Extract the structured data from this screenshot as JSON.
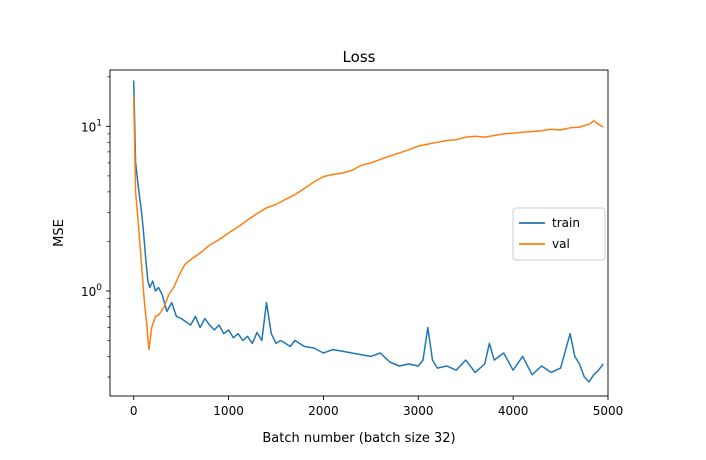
{
  "chart_data": {
    "type": "line",
    "title": "Loss",
    "xlabel": "Batch number (batch size 32)",
    "ylabel": "MSE",
    "xlim": [
      -250,
      5000
    ],
    "ylim": [
      0.23,
      22
    ],
    "yscale": "log",
    "x_ticks": [
      0,
      1000,
      2000,
      3000,
      4000,
      5000
    ],
    "y_ticks": [
      {
        "value": 1,
        "base": "10",
        "exp": "0"
      },
      {
        "value": 10,
        "base": "10",
        "exp": "1"
      }
    ],
    "grid": false,
    "legend": "center-right",
    "series": [
      {
        "name": "train",
        "color": "#1f77b4",
        "x": [
          0,
          20,
          50,
          80,
          100,
          130,
          150,
          170,
          200,
          230,
          260,
          300,
          350,
          400,
          450,
          500,
          550,
          600,
          650,
          700,
          750,
          800,
          850,
          900,
          950,
          1000,
          1050,
          1100,
          1150,
          1200,
          1250,
          1300,
          1350,
          1400,
          1450,
          1500,
          1550,
          1600,
          1650,
          1700,
          1800,
          1900,
          2000,
          2100,
          2200,
          2300,
          2400,
          2500,
          2600,
          2700,
          2800,
          2900,
          3000,
          3050,
          3100,
          3150,
          3200,
          3300,
          3400,
          3500,
          3600,
          3700,
          3750,
          3800,
          3900,
          4000,
          4100,
          4200,
          4300,
          4400,
          4500,
          4600,
          4650,
          4700,
          4750,
          4800,
          4850,
          4900,
          4950
        ],
        "y": [
          19,
          6,
          4.2,
          3.1,
          2.4,
          1.5,
          1.15,
          1.05,
          1.15,
          1.0,
          1.05,
          0.95,
          0.75,
          0.85,
          0.7,
          0.68,
          0.65,
          0.62,
          0.7,
          0.6,
          0.68,
          0.62,
          0.58,
          0.62,
          0.55,
          0.58,
          0.52,
          0.55,
          0.5,
          0.53,
          0.48,
          0.56,
          0.5,
          0.85,
          0.55,
          0.48,
          0.5,
          0.48,
          0.46,
          0.5,
          0.46,
          0.45,
          0.42,
          0.44,
          0.43,
          0.42,
          0.41,
          0.4,
          0.42,
          0.37,
          0.35,
          0.36,
          0.35,
          0.38,
          0.6,
          0.38,
          0.34,
          0.35,
          0.33,
          0.38,
          0.32,
          0.36,
          0.48,
          0.38,
          0.42,
          0.33,
          0.4,
          0.31,
          0.35,
          0.32,
          0.34,
          0.55,
          0.4,
          0.36,
          0.3,
          0.28,
          0.31,
          0.33,
          0.36
        ]
      },
      {
        "name": "val",
        "color": "#ff7f0e",
        "x": [
          0,
          20,
          50,
          80,
          110,
          140,
          160,
          190,
          230,
          270,
          320,
          370,
          420,
          480,
          540,
          600,
          700,
          800,
          900,
          1000,
          1100,
          1200,
          1300,
          1400,
          1500,
          1600,
          1700,
          1800,
          1900,
          2000,
          2100,
          2200,
          2300,
          2400,
          2500,
          2600,
          2700,
          2800,
          2900,
          3000,
          3100,
          3200,
          3300,
          3400,
          3500,
          3600,
          3700,
          3800,
          3900,
          4000,
          4100,
          4200,
          4300,
          4400,
          4500,
          4600,
          4700,
          4800,
          4850,
          4900,
          4950
        ],
        "y": [
          15,
          4.0,
          2.5,
          1.5,
          0.9,
          0.6,
          0.44,
          0.6,
          0.7,
          0.72,
          0.8,
          0.95,
          1.05,
          1.25,
          1.45,
          1.55,
          1.7,
          1.9,
          2.05,
          2.25,
          2.45,
          2.7,
          2.95,
          3.2,
          3.35,
          3.6,
          3.85,
          4.2,
          4.6,
          4.95,
          5.1,
          5.2,
          5.4,
          5.8,
          6.0,
          6.3,
          6.6,
          6.9,
          7.2,
          7.6,
          7.8,
          8.0,
          8.2,
          8.3,
          8.6,
          8.7,
          8.6,
          8.8,
          9.0,
          9.1,
          9.2,
          9.3,
          9.4,
          9.6,
          9.5,
          9.8,
          9.9,
          10.3,
          10.8,
          10.3,
          9.9
        ]
      }
    ]
  }
}
